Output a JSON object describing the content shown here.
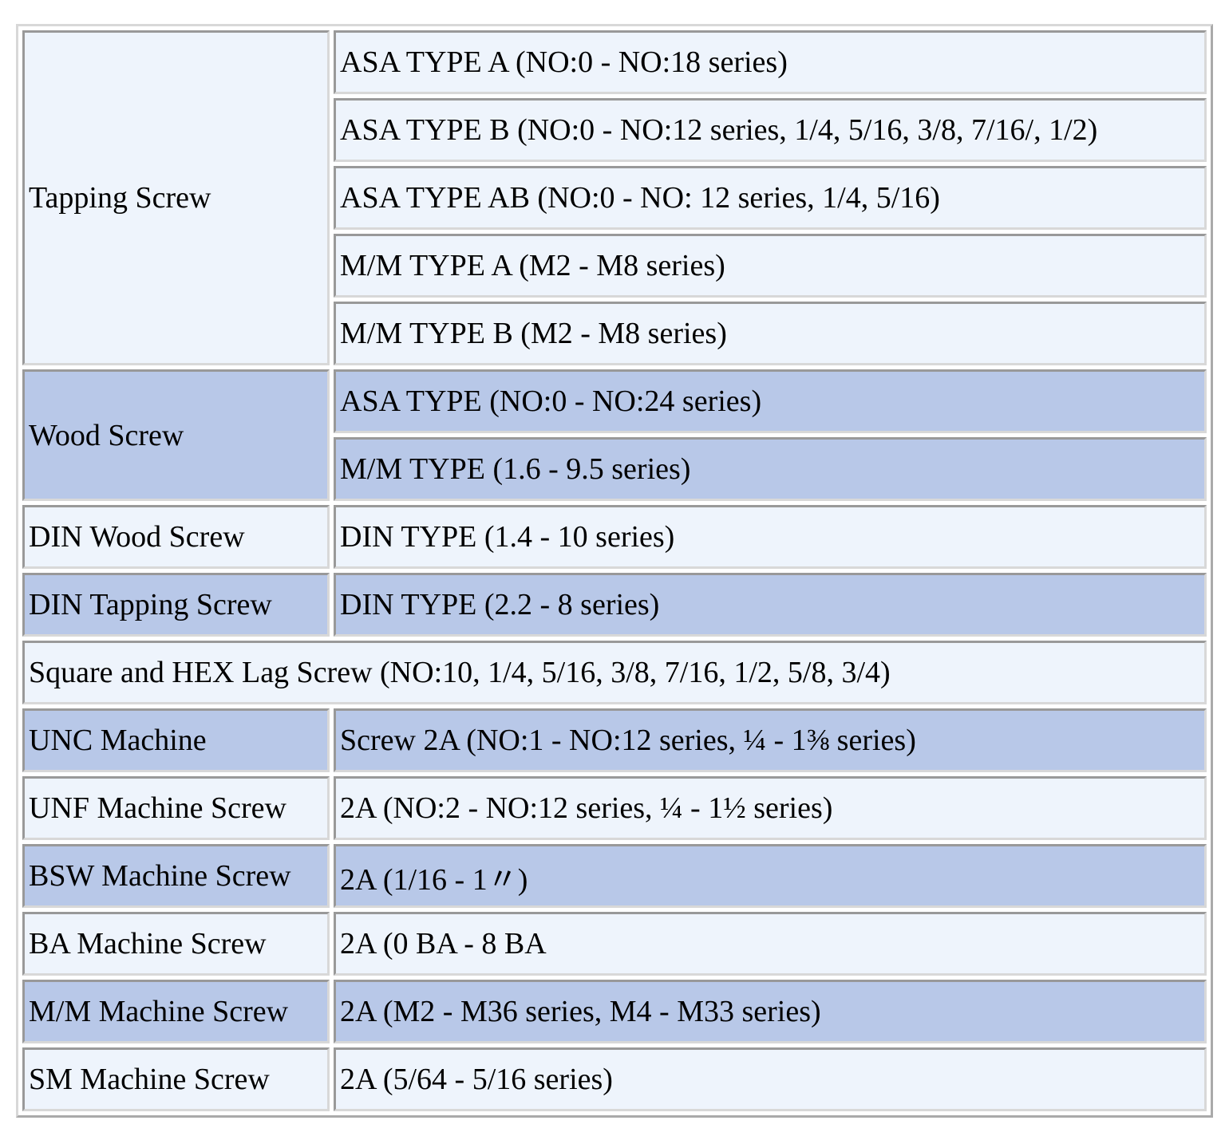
{
  "table": {
    "rows": [
      {
        "category": "Tapping Screw",
        "items": [
          "ASA TYPE A (NO:0 - NO:18 series)",
          "ASA TYPE B (NO:0 - NO:12 series, 1/4, 5/16, 3/8, 7/16/, 1/2)",
          "ASA TYPE AB (NO:0 - NO: 12 series, 1/4, 5/16)",
          "M/M TYPE A (M2 - M8 series)",
          "M/M TYPE B (M2 - M8 series)"
        ]
      },
      {
        "category": "Wood Screw",
        "items": [
          "ASA TYPE (NO:0 - NO:24 series)",
          "M/M TYPE (1.6 - 9.5 series)"
        ]
      },
      {
        "category": "DIN Wood Screw",
        "items": [
          "DIN TYPE (1.4 - 10 series)"
        ]
      },
      {
        "category": "DIN Tapping Screw",
        "items": [
          "DIN TYPE (2.2 - 8 series)"
        ]
      },
      {
        "category": "Square and HEX Lag Screw (NO:10, 1/4, 5/16, 3/8, 7/16, 1/2, 5/8, 3/4)",
        "items": []
      },
      {
        "category": "UNC Machine",
        "items": [
          "Screw 2A (NO:1 - NO:12 series, ¼ - 1⅜ series)"
        ]
      },
      {
        "category": "UNF Machine Screw",
        "items": [
          "2A (NO:2 - NO:12 series, ¼ - 1½ series)"
        ]
      },
      {
        "category": "BSW Machine Screw",
        "items": [
          "2A (1/16 - 1〃)"
        ]
      },
      {
        "category": "BA Machine Screw",
        "items": [
          "2A (0 BA - 8 BA"
        ]
      },
      {
        "category": "M/M Machine Screw",
        "items": [
          "2A (M2 - M36 series, M4 - M33 series)"
        ]
      },
      {
        "category": "SM Machine Screw",
        "items": [
          "2A (5/64 - 5/16 series)"
        ]
      }
    ]
  }
}
